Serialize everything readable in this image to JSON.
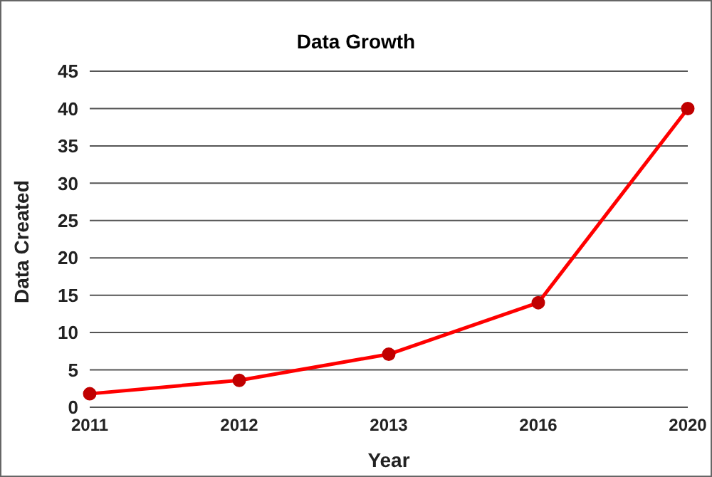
{
  "chart_data": {
    "type": "line",
    "title": "Data Growth",
    "xlabel": "Year",
    "ylabel": "Data Created",
    "categories": [
      "2011",
      "2012",
      "2013",
      "2016",
      "2020"
    ],
    "series": [
      {
        "color": "#ff0000",
        "values": [
          1.8,
          3.6,
          7.1,
          14,
          40
        ]
      }
    ],
    "ylim": [
      0,
      45
    ],
    "yticks": [
      0,
      5,
      10,
      15,
      20,
      25,
      30,
      35,
      40,
      45
    ],
    "grid": "y",
    "marker": "circle",
    "line_style": "solid"
  }
}
